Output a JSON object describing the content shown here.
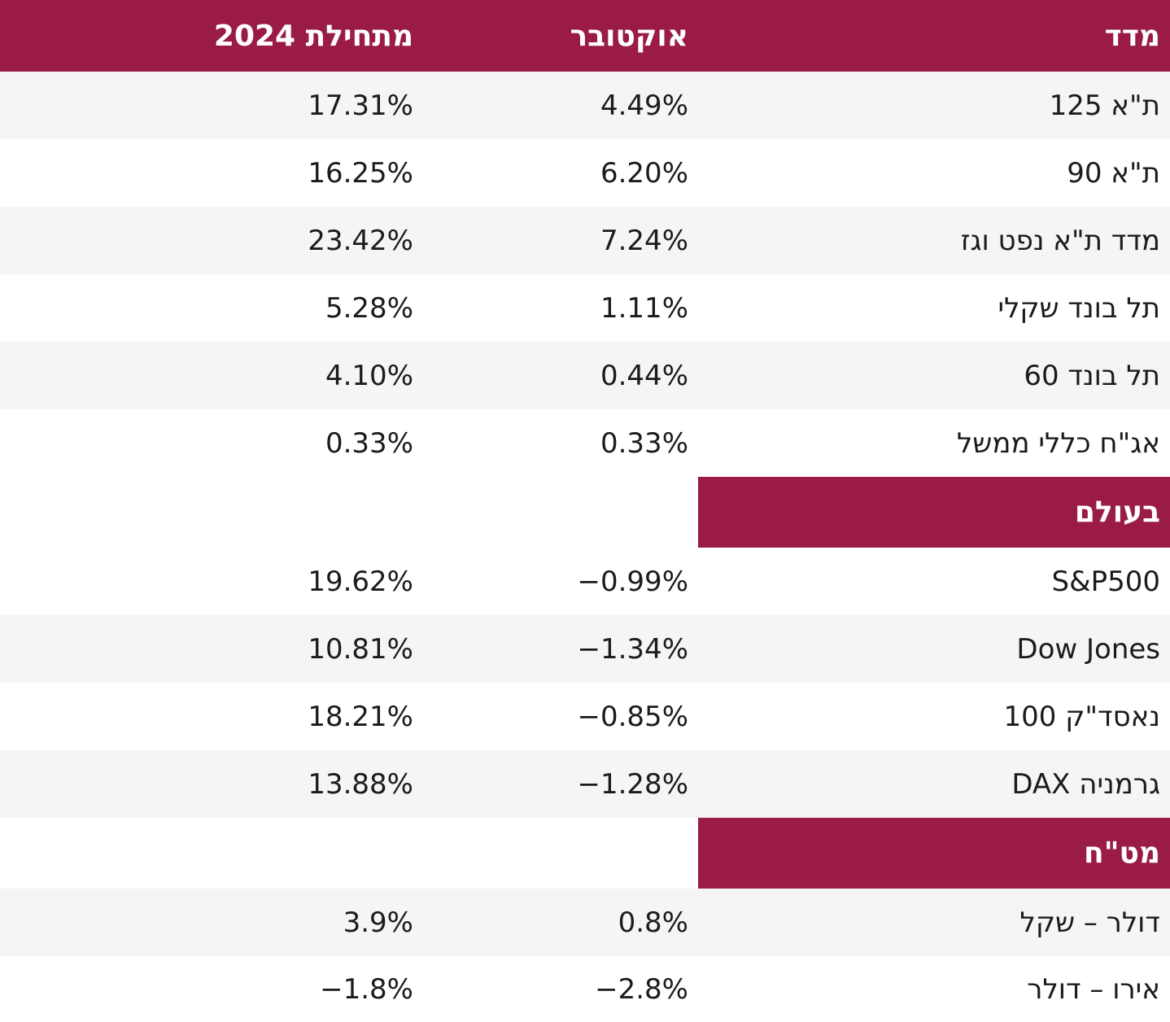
{
  "colors": {
    "accent": "#9a1b47",
    "row_alt_background": "#f5f5f5",
    "text": "#1b1b1b",
    "header_text": "#ffffff"
  },
  "table": {
    "header": {
      "index": "מדד",
      "october": "אוקטובר",
      "ytd": "מתחילת 2024"
    },
    "sections": [
      {
        "title": "",
        "rows": [
          {
            "label": "ת\"א 125",
            "october": "4.49%",
            "ytd": "17.31%"
          },
          {
            "label": "ת\"א 90",
            "october": "6.20%",
            "ytd": "16.25%"
          },
          {
            "label": "מדד ת\"א נפט וגז",
            "october": "7.24%",
            "ytd": "23.42%"
          },
          {
            "label": "תל בונד שקלי",
            "october": "1.11%",
            "ytd": "5.28%"
          },
          {
            "label": "תל בונד 60",
            "october": "0.44%",
            "ytd": "4.10%"
          },
          {
            "label": "אג\"ח כללי ממשל",
            "october": "0.33%",
            "ytd": "0.33%"
          }
        ]
      },
      {
        "title": "בעולם",
        "rows": [
          {
            "label": "S&P500",
            "october": "−0.99%",
            "ytd": "19.62%"
          },
          {
            "label": "Dow Jones",
            "october": "−1.34%",
            "ytd": "10.81%"
          },
          {
            "label": "נאסד\"ק 100",
            "october": "−0.85%",
            "ytd": "18.21%"
          },
          {
            "label": "גרמניה DAX",
            "october": "−1.28%",
            "ytd": "13.88%"
          }
        ]
      },
      {
        "title": "מט\"ח",
        "rows": [
          {
            "label": "דולר – שקל",
            "october": "0.8%",
            "ytd": "3.9%"
          },
          {
            "label": "אירו – דולר",
            "october": "−2.8%",
            "ytd": "−1.8%"
          }
        ]
      }
    ]
  },
  "chart_data": {
    "type": "table",
    "title": "",
    "columns": [
      "מדד",
      "אוקטובר",
      "מתחילת 2024"
    ],
    "sections": [
      {
        "section": "",
        "rows": [
          [
            "ת\"א 125",
            "4.49%",
            "17.31%"
          ],
          [
            "ת\"א 90",
            "6.20%",
            "16.25%"
          ],
          [
            "מדד ת\"א נפט וגז",
            "7.24%",
            "23.42%"
          ],
          [
            "תל בונד שקלי",
            "1.11%",
            "5.28%"
          ],
          [
            "תל בונד 60",
            "0.44%",
            "4.10%"
          ],
          [
            "אג\"ח כללי ממשל",
            "0.33%",
            "0.33%"
          ]
        ]
      },
      {
        "section": "בעולם",
        "rows": [
          [
            "S&P500",
            "−0.99%",
            "19.62%"
          ],
          [
            "Dow Jones",
            "−1.34%",
            "10.81%"
          ],
          [
            "נאסד\"ק 100",
            "−0.85%",
            "18.21%"
          ],
          [
            "גרמניה DAX",
            "−1.28%",
            "13.88%"
          ]
        ]
      },
      {
        "section": "מט\"ח",
        "rows": [
          [
            "דולר – שקל",
            "0.8%",
            "3.9%"
          ],
          [
            "אירו – דולר",
            "−2.8%",
            "−1.8%"
          ]
        ]
      }
    ]
  }
}
